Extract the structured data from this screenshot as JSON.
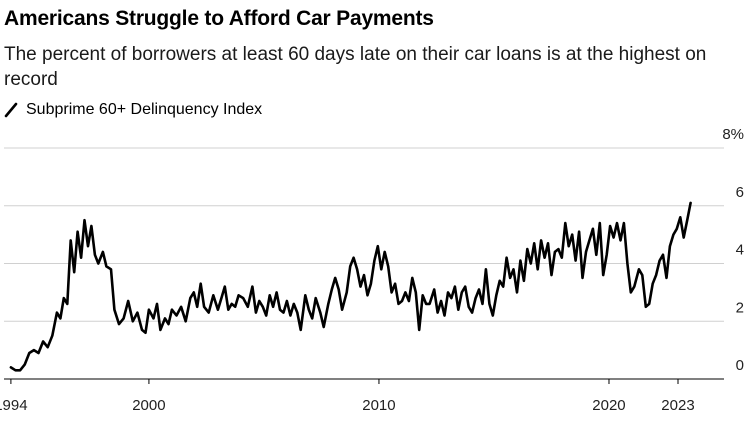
{
  "chart_data": {
    "type": "line",
    "title": "Americans Struggle to Afford Car Payments",
    "subtitle": "The percent of borrowers at least 60 days late on their car loans is at the highest on record",
    "legend": [
      {
        "label": "Subprime 60+ Delinquency Index",
        "color": "#000000"
      }
    ],
    "xlabel": "",
    "ylabel": "",
    "xlim": [
      1993.7,
      2025.0
    ],
    "ylim": [
      0,
      8
    ],
    "x_ticks": [
      1994,
      2000,
      2010,
      2020,
      2023
    ],
    "x_tick_labels": [
      "1994",
      "2000",
      "2010",
      "2020",
      "2023"
    ],
    "y_ticks": [
      0,
      2,
      4,
      6,
      8
    ],
    "y_tick_labels": [
      "0",
      "2",
      "4",
      "6",
      "8%"
    ],
    "grid": true,
    "series": [
      {
        "name": "Subprime 60+ Delinquency Index",
        "points": [
          [
            1994.0,
            0.4
          ],
          [
            1994.2,
            0.3
          ],
          [
            1994.4,
            0.3
          ],
          [
            1994.6,
            0.5
          ],
          [
            1994.8,
            0.9
          ],
          [
            1995.0,
            1.0
          ],
          [
            1995.2,
            0.9
          ],
          [
            1995.4,
            1.3
          ],
          [
            1995.6,
            1.1
          ],
          [
            1995.8,
            1.5
          ],
          [
            1996.0,
            2.3
          ],
          [
            1996.15,
            2.1
          ],
          [
            1996.3,
            2.8
          ],
          [
            1996.45,
            2.6
          ],
          [
            1996.6,
            4.8
          ],
          [
            1996.75,
            3.7
          ],
          [
            1996.9,
            5.1
          ],
          [
            1997.05,
            4.2
          ],
          [
            1997.2,
            5.5
          ],
          [
            1997.35,
            4.6
          ],
          [
            1997.5,
            5.3
          ],
          [
            1997.65,
            4.3
          ],
          [
            1997.8,
            4.0
          ],
          [
            1998.0,
            4.4
          ],
          [
            1998.15,
            3.9
          ],
          [
            1998.35,
            3.8
          ],
          [
            1998.5,
            2.4
          ],
          [
            1998.7,
            1.9
          ],
          [
            1998.9,
            2.1
          ],
          [
            1999.1,
            2.7
          ],
          [
            1999.3,
            2.0
          ],
          [
            1999.5,
            2.3
          ],
          [
            1999.7,
            1.7
          ],
          [
            1999.85,
            1.6
          ],
          [
            2000.0,
            2.4
          ],
          [
            2000.2,
            2.1
          ],
          [
            2000.35,
            2.6
          ],
          [
            2000.5,
            1.7
          ],
          [
            2000.7,
            2.1
          ],
          [
            2000.85,
            1.9
          ],
          [
            2001.0,
            2.4
          ],
          [
            2001.2,
            2.2
          ],
          [
            2001.4,
            2.5
          ],
          [
            2001.6,
            2.0
          ],
          [
            2001.8,
            2.8
          ],
          [
            2001.95,
            3.0
          ],
          [
            2002.1,
            2.5
          ],
          [
            2002.25,
            3.3
          ],
          [
            2002.4,
            2.5
          ],
          [
            2002.6,
            2.3
          ],
          [
            2002.8,
            2.9
          ],
          [
            2003.0,
            2.4
          ],
          [
            2003.15,
            2.8
          ],
          [
            2003.3,
            3.2
          ],
          [
            2003.45,
            2.4
          ],
          [
            2003.6,
            2.6
          ],
          [
            2003.75,
            2.5
          ],
          [
            2003.9,
            2.9
          ],
          [
            2004.1,
            2.8
          ],
          [
            2004.3,
            2.5
          ],
          [
            2004.5,
            3.2
          ],
          [
            2004.65,
            2.3
          ],
          [
            2004.8,
            2.7
          ],
          [
            2004.95,
            2.5
          ],
          [
            2005.1,
            2.2
          ],
          [
            2005.25,
            2.9
          ],
          [
            2005.4,
            2.5
          ],
          [
            2005.55,
            3.0
          ],
          [
            2005.7,
            2.4
          ],
          [
            2005.85,
            2.3
          ],
          [
            2006.0,
            2.7
          ],
          [
            2006.15,
            2.2
          ],
          [
            2006.3,
            2.6
          ],
          [
            2006.45,
            2.3
          ],
          [
            2006.6,
            1.7
          ],
          [
            2006.8,
            2.9
          ],
          [
            2006.95,
            2.4
          ],
          [
            2007.1,
            2.1
          ],
          [
            2007.25,
            2.8
          ],
          [
            2007.45,
            2.3
          ],
          [
            2007.6,
            1.8
          ],
          [
            2007.8,
            2.6
          ],
          [
            2007.95,
            3.1
          ],
          [
            2008.1,
            3.5
          ],
          [
            2008.25,
            3.1
          ],
          [
            2008.4,
            2.4
          ],
          [
            2008.6,
            3.0
          ],
          [
            2008.75,
            3.9
          ],
          [
            2008.9,
            4.2
          ],
          [
            2009.05,
            3.8
          ],
          [
            2009.2,
            3.2
          ],
          [
            2009.35,
            3.6
          ],
          [
            2009.5,
            2.9
          ],
          [
            2009.65,
            3.3
          ],
          [
            2009.8,
            4.1
          ],
          [
            2009.95,
            4.6
          ],
          [
            2010.1,
            3.8
          ],
          [
            2010.25,
            4.4
          ],
          [
            2010.4,
            3.9
          ],
          [
            2010.55,
            3.0
          ],
          [
            2010.7,
            3.3
          ],
          [
            2010.85,
            2.6
          ],
          [
            2011.0,
            2.7
          ],
          [
            2011.15,
            3.0
          ],
          [
            2011.3,
            2.7
          ],
          [
            2011.45,
            3.5
          ],
          [
            2011.6,
            3.0
          ],
          [
            2011.75,
            1.7
          ],
          [
            2011.9,
            2.9
          ],
          [
            2012.05,
            2.6
          ],
          [
            2012.2,
            2.6
          ],
          [
            2012.4,
            3.1
          ],
          [
            2012.55,
            2.3
          ],
          [
            2012.7,
            2.7
          ],
          [
            2012.85,
            2.2
          ],
          [
            2013.0,
            3.0
          ],
          [
            2013.15,
            2.8
          ],
          [
            2013.3,
            3.2
          ],
          [
            2013.45,
            2.4
          ],
          [
            2013.6,
            3.0
          ],
          [
            2013.75,
            3.2
          ],
          [
            2013.9,
            2.5
          ],
          [
            2014.05,
            2.3
          ],
          [
            2014.2,
            2.8
          ],
          [
            2014.35,
            3.1
          ],
          [
            2014.5,
            2.6
          ],
          [
            2014.65,
            3.8
          ],
          [
            2014.8,
            2.6
          ],
          [
            2014.95,
            2.2
          ],
          [
            2015.1,
            2.9
          ],
          [
            2015.25,
            3.4
          ],
          [
            2015.4,
            3.2
          ],
          [
            2015.55,
            4.2
          ],
          [
            2015.7,
            3.5
          ],
          [
            2015.85,
            3.8
          ],
          [
            2016.0,
            3.0
          ],
          [
            2016.15,
            4.1
          ],
          [
            2016.3,
            3.4
          ],
          [
            2016.45,
            4.5
          ],
          [
            2016.6,
            4.0
          ],
          [
            2016.75,
            4.7
          ],
          [
            2016.9,
            3.8
          ],
          [
            2017.05,
            4.8
          ],
          [
            2017.2,
            4.2
          ],
          [
            2017.35,
            4.7
          ],
          [
            2017.5,
            3.6
          ],
          [
            2017.65,
            4.4
          ],
          [
            2017.8,
            4.5
          ],
          [
            2017.95,
            4.2
          ],
          [
            2018.1,
            5.4
          ],
          [
            2018.25,
            4.6
          ],
          [
            2018.4,
            5.0
          ],
          [
            2018.55,
            4.1
          ],
          [
            2018.7,
            5.1
          ],
          [
            2018.85,
            3.5
          ],
          [
            2019.0,
            4.4
          ],
          [
            2019.15,
            4.8
          ],
          [
            2019.3,
            5.2
          ],
          [
            2019.45,
            4.3
          ],
          [
            2019.6,
            5.4
          ],
          [
            2019.75,
            3.6
          ],
          [
            2019.9,
            4.3
          ],
          [
            2020.05,
            5.3
          ],
          [
            2020.2,
            4.9
          ],
          [
            2020.35,
            5.4
          ],
          [
            2020.5,
            4.8
          ],
          [
            2020.65,
            5.4
          ],
          [
            2020.8,
            4.0
          ],
          [
            2020.95,
            3.0
          ],
          [
            2021.1,
            3.2
          ],
          [
            2021.3,
            3.8
          ],
          [
            2021.45,
            3.6
          ],
          [
            2021.6,
            2.5
          ],
          [
            2021.75,
            2.6
          ],
          [
            2021.9,
            3.3
          ],
          [
            2022.05,
            3.6
          ],
          [
            2022.2,
            4.1
          ],
          [
            2022.35,
            4.3
          ],
          [
            2022.5,
            3.5
          ],
          [
            2022.65,
            4.6
          ],
          [
            2022.8,
            5.0
          ],
          [
            2022.95,
            5.2
          ],
          [
            2023.1,
            5.6
          ],
          [
            2023.25,
            4.9
          ],
          [
            2023.4,
            5.5
          ],
          [
            2023.55,
            6.1
          ]
        ]
      }
    ]
  }
}
